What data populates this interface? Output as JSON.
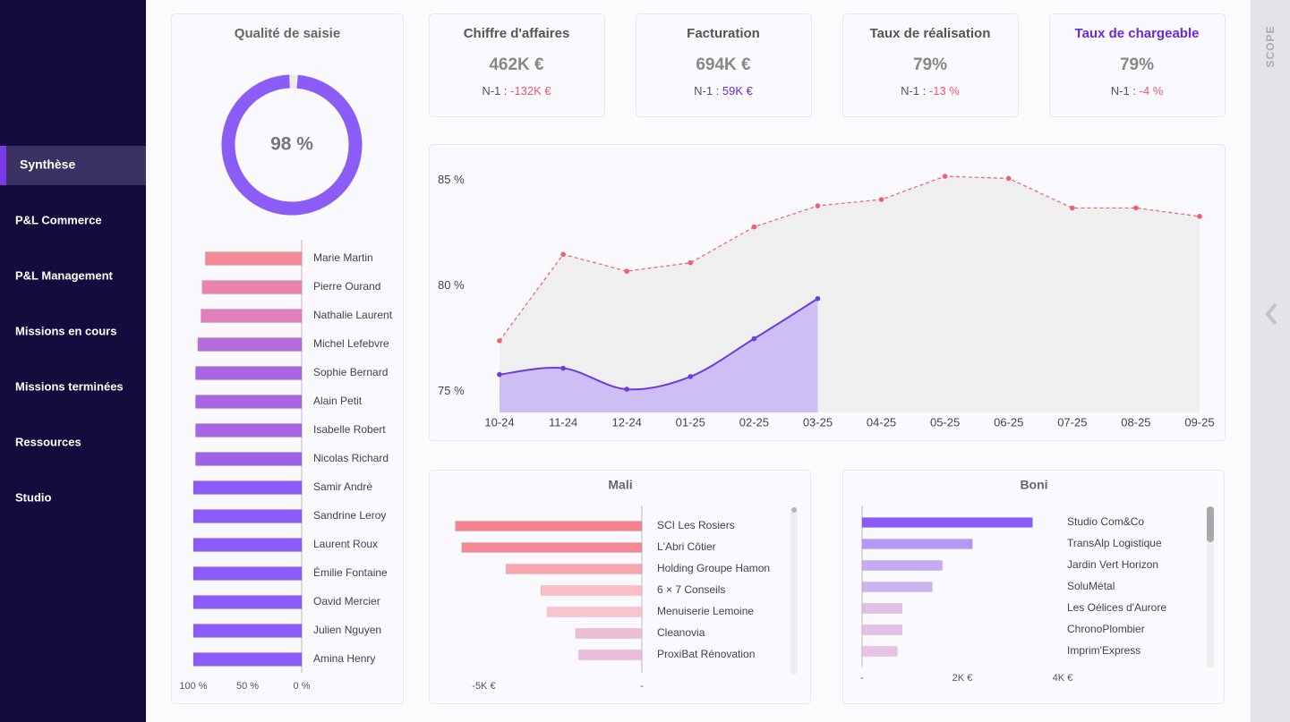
{
  "sidebar": {
    "items": [
      "Synthèse",
      "P&L Commerce",
      "P&L Management",
      "Missions en cours",
      "Missions terminées",
      "Ressources",
      "Studio"
    ],
    "active": 0
  },
  "scope": "SCOPE",
  "kpis": [
    {
      "title": "Chiffre d'affaires",
      "value": "462K €",
      "n1_label": "N-1 :",
      "n1_value": "-132K €",
      "n1_color": "#f0566a",
      "title_color": "#555555"
    },
    {
      "title": "Facturation",
      "value": "694K €",
      "n1_label": "N-1 :",
      "n1_value": "59K €",
      "n1_color": "#6d28d9",
      "title_color": "#555555"
    },
    {
      "title": "Taux de réalisation",
      "value": "79%",
      "n1_label": "N-1 :",
      "n1_value": "-13 %",
      "n1_color": "#f0566a",
      "title_color": "#555555"
    },
    {
      "title": "Taux de chargeable",
      "value": "79%",
      "n1_label": "N-1 :",
      "n1_value": "-4 %",
      "n1_color": "#f0566a",
      "title_color": "#6d28d9"
    }
  ],
  "quality": {
    "title": "Qualité de saisie",
    "gauge": {
      "value": 98,
      "label": "98 %",
      "color": "#8b5cf6"
    },
    "chart": {
      "type": "bar",
      "categories": [
        "Marie Martin",
        "Pierre Ourand",
        "Nathalie Laurent",
        "Michel Lefebvre",
        "Sophie Bernard",
        "Alain Petit",
        "Isabelle Robert",
        "Nicolas Richard",
        "Samir André",
        "Sandrine Leroy",
        "Laurent Roux",
        "Émilie Fontaine",
        "Oavid Mercier",
        "Julien Nguyen",
        "Amina Henry"
      ],
      "values": [
        89,
        92,
        93,
        96,
        98,
        98,
        98,
        98,
        100,
        100,
        100,
        100,
        100,
        100,
        100
      ],
      "colors": [
        "#f38b97",
        "#e985a8",
        "#df80ba",
        "#b46ddb",
        "#aa66e0",
        "#aa66e0",
        "#a665e2",
        "#9f62e6",
        "#8b5cf6",
        "#8b5cf6",
        "#8b5cf6",
        "#8b5cf6",
        "#8b5cf6",
        "#8b5cf6",
        "#8b5cf6"
      ],
      "xlim": [
        100,
        0
      ],
      "xticks": [
        {
          "value": 100,
          "label": "100 %"
        },
        {
          "value": 50,
          "label": "50 %"
        },
        {
          "value": 0,
          "label": "0 %"
        }
      ]
    }
  },
  "trend": {
    "type": "line",
    "categories": [
      "10-24",
      "11-24",
      "12-24",
      "01-25",
      "02-25",
      "03-25",
      "04-25",
      "05-25",
      "06-25",
      "07-25",
      "08-25",
      "09-25"
    ],
    "ylim": [
      74,
      85.5
    ],
    "yticks": [
      {
        "value": 75,
        "label": "75 %"
      },
      {
        "value": 80,
        "label": "80 %"
      },
      {
        "value": 85,
        "label": "85 %"
      }
    ],
    "series": [
      {
        "color": "#f0606e",
        "area_color": "#efefef",
        "dashed": true,
        "values": [
          77.4,
          81.5,
          80.7,
          81.1,
          82.8,
          83.8,
          84.1,
          85.2,
          85.1,
          83.7,
          83.7,
          83.3
        ]
      },
      {
        "color": "#6d3be0",
        "area_color": "#cdbff5",
        "dashed": false,
        "values": [
          75.8,
          76.1,
          75.1,
          75.7,
          77.5,
          79.4,
          null,
          null,
          null,
          null,
          null,
          null
        ]
      }
    ]
  },
  "mali": {
    "title": "Mali",
    "type": "bar",
    "categories": [
      "SCI Les Rosiers",
      "L'Abri Côtier",
      "Holding Groupe Hamon",
      "6 × 7 Conseils",
      "Menuiserie Lemoine",
      "Cleanovia",
      "ProxiBat Rénovation"
    ],
    "values": [
      -5900,
      -5700,
      -4300,
      -3200,
      -3000,
      -2100,
      -2000
    ],
    "colors": [
      "#f4838f",
      "#f58a96",
      "#f9a5ae",
      "#fbbcc4",
      "#fbc3cb",
      "#ecbfd9",
      "#ebbcdb"
    ],
    "xlim": [
      -6400,
      0
    ],
    "xticks": [
      {
        "value": -5000,
        "label": "-5K €"
      },
      {
        "value": 0,
        "label": "-"
      }
    ]
  },
  "boni": {
    "title": "Boni",
    "type": "bar",
    "categories": [
      "Studio Com&Co",
      "TransAlp Logistique",
      "Jardin Vert Horizon",
      "SoluMétal",
      "Les Oélices d'Aurore",
      "ChronoPlombier",
      "Imprim'Express"
    ],
    "values": [
      3400,
      2200,
      1600,
      1400,
      800,
      800,
      700
    ],
    "colors": [
      "#8b5cf6",
      "#b595f5",
      "#c6aaf3",
      "#cfb2ef",
      "#e2bfe6",
      "#e3c0e6",
      "#e6c2e4"
    ],
    "xlim": [
      0,
      4000
    ],
    "xticks": [
      {
        "value": 0,
        "label": "-"
      },
      {
        "value": 2000,
        "label": "2K €"
      },
      {
        "value": 4000,
        "label": "4K €"
      }
    ]
  }
}
